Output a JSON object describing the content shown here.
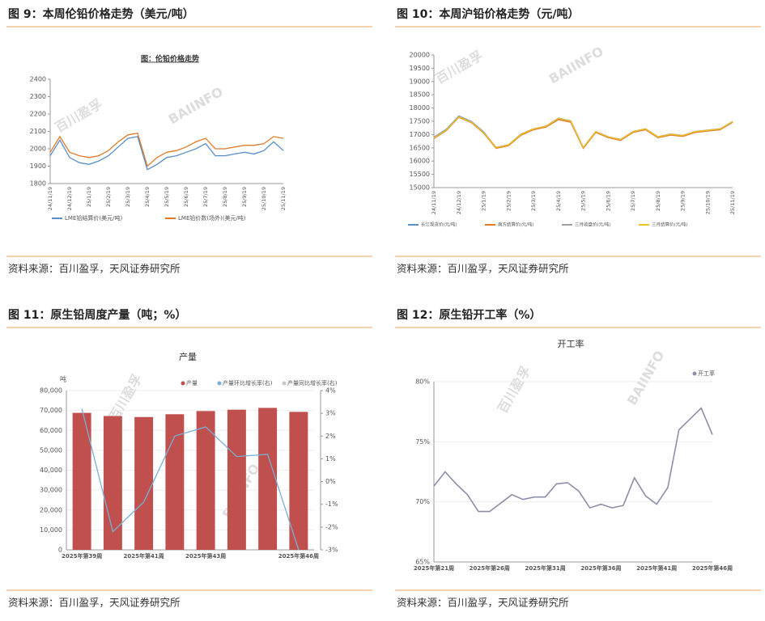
{
  "watermark": [
    "百川盈孚",
    "BAIINFO"
  ],
  "panels": [
    {
      "heading": "图 9：本周伦铅价格走势（美元/吨）",
      "source": "资料来源：百川盈孚，天风证券研究所"
    },
    {
      "heading": "图 10：本周沪铅价格走势（元/吨）",
      "source": "资料来源：百川盈孚，天风证券研究所"
    },
    {
      "heading": "图 11：原生铅周度产量（吨；%）",
      "source": "资料来源：百川盈孚，天风证券研究所"
    },
    {
      "heading": "图 12：原生铅开工率（%）",
      "source": "资料来源：百川盈孚，天风证券研究所"
    }
  ],
  "chart_data": [
    {
      "type": "line",
      "title": "图：伦铅价格走势",
      "categories": [
        "24/11/19",
        null,
        "24/12/19",
        null,
        "25/1/19",
        null,
        "25/2/19",
        null,
        "25/3/19",
        null,
        "25/4/19",
        null,
        "25/5/19",
        null,
        "25/6/19",
        null,
        "25/7/19",
        null,
        "25/8/19",
        null,
        "25/9/19",
        null,
        "25/10/19",
        null,
        "25/11/19"
      ],
      "series": [
        {
          "name": "LME铅结算价(美元/吨)",
          "color": "#5b8fc7",
          "values": [
            1960,
            2050,
            1950,
            1920,
            1910,
            1930,
            1960,
            2010,
            2060,
            2070,
            1880,
            1910,
            1950,
            1960,
            1980,
            2000,
            2030,
            1960,
            1960,
            1970,
            1980,
            1970,
            1990,
            2040,
            1990
          ]
        },
        {
          "name": "LME铅价数(场外)(美元/吨)",
          "color": "#e07b2a",
          "values": [
            1980,
            2070,
            1980,
            1960,
            1950,
            1960,
            1990,
            2040,
            2080,
            2090,
            1900,
            1950,
            1980,
            1990,
            2010,
            2040,
            2060,
            2000,
            2000,
            2010,
            2020,
            2020,
            2030,
            2070,
            2060
          ]
        }
      ],
      "ylim": [
        1800,
        2400
      ],
      "yticks": [
        1800,
        1900,
        2000,
        2100,
        2200,
        2300,
        2400
      ]
    },
    {
      "type": "line",
      "categories": [
        "24/11/19",
        null,
        "24/12/19",
        null,
        "25/1/19",
        null,
        "25/2/19",
        null,
        "25/3/19",
        null,
        "25/4/19",
        null,
        "25/5/19",
        null,
        "25/6/19",
        null,
        "25/7/19",
        null,
        "25/8/19",
        null,
        "25/9/19",
        null,
        "25/10/19",
        null,
        "25/11/19"
      ],
      "series": [
        {
          "name": "长江现货价(元/吨)",
          "color": "#5b8fc7",
          "values": [
            16900,
            17200,
            17700,
            17500,
            17100,
            16500,
            16600,
            17000,
            17200,
            17300,
            17600,
            17500,
            16500,
            17100,
            16900,
            16800,
            17100,
            17200,
            16900,
            17000,
            16950,
            17100,
            17150,
            17200,
            17500
          ]
        },
        {
          "name": "南方结算价(元/吨)",
          "color": "#e07b2a",
          "values": [
            16850,
            17150,
            17650,
            17450,
            17050,
            16480,
            16580,
            16980,
            17180,
            17280,
            17560,
            17460,
            16480,
            17080,
            16880,
            16780,
            17080,
            17180,
            16880,
            16980,
            16930,
            17080,
            17130,
            17180,
            17460
          ]
        },
        {
          "name": "三月收盘价(元/吨)",
          "color": "#a0a0a0",
          "values": [
            16880,
            17180,
            17680,
            17480,
            17080,
            16520,
            16620,
            17020,
            17220,
            17320,
            17620,
            17520,
            16520,
            17120,
            16920,
            16820,
            17120,
            17220,
            16920,
            17020,
            16970,
            17120,
            17170,
            17220,
            17480
          ]
        },
        {
          "name": "三月结算价(元/吨)",
          "color": "#f0c020",
          "values": [
            16870,
            17170,
            17670,
            17470,
            17070,
            16510,
            16610,
            17010,
            17210,
            17310,
            17610,
            17510,
            16510,
            17110,
            16910,
            16810,
            17110,
            17210,
            16910,
            17010,
            16960,
            17110,
            17160,
            17210,
            17490
          ]
        }
      ],
      "ylim": [
        15000,
        20000
      ],
      "yticks": [
        15000,
        15500,
        16000,
        16500,
        17000,
        17500,
        18000,
        18500,
        19000,
        19500,
        20000
      ]
    },
    {
      "type": "bar_line",
      "title": "产量",
      "y_label": "吨",
      "categories": [
        "2025年第39周",
        null,
        "2025年第41周",
        null,
        "2025年第43周",
        null,
        null,
        "2025年第46周"
      ],
      "series": [
        {
          "name": "产量",
          "color": "#c0504d",
          "values": [
            68800,
            67200,
            66700,
            68100,
            69700,
            70400,
            71300,
            69300
          ]
        },
        {
          "name": "产量环比增长率(右)",
          "color": "#7aaed6",
          "axis": "y2",
          "values": [
            3.2,
            -2.2,
            -0.9,
            2.0,
            2.4,
            1.1,
            1.2,
            -3.0
          ]
        },
        {
          "name": "产量同比增长率(右)",
          "color": "#c8c8c8",
          "axis": "y2",
          "values": [
            null,
            null,
            null,
            null,
            null,
            null,
            null,
            null
          ]
        }
      ],
      "ylim": [
        0,
        80000
      ],
      "yticks": [
        0,
        {
          "value": 10000,
          "label": "10,000"
        },
        {
          "value": 20000,
          "label": "20,000"
        },
        {
          "value": 30000,
          "label": "30,000"
        },
        {
          "value": 40000,
          "label": "40,000"
        },
        {
          "value": 50000,
          "label": "50,000"
        },
        {
          "value": 60000,
          "label": "60,000"
        },
        {
          "value": 70000,
          "label": "70,000"
        },
        {
          "value": 80000,
          "label": "80,000"
        }
      ],
      "y2lim": [
        -3,
        4
      ],
      "y2ticks": [
        {
          "value": -3,
          "label": "-3%"
        },
        {
          "value": -2,
          "label": "-2%"
        },
        {
          "value": -1,
          "label": "-1%"
        },
        {
          "value": 0,
          "label": "0%"
        },
        {
          "value": 1,
          "label": "1%"
        },
        {
          "value": 2,
          "label": "2%"
        },
        {
          "value": 3,
          "label": "3%"
        },
        {
          "value": 4,
          "label": "4%"
        }
      ]
    },
    {
      "type": "line",
      "title": "开工率",
      "categories": [
        "2025年第21周",
        null,
        null,
        null,
        null,
        "2025年第26周",
        null,
        null,
        null,
        null,
        "2025年第31周",
        null,
        null,
        null,
        null,
        "2025年第36周",
        null,
        null,
        null,
        null,
        "2025年第41周",
        null,
        null,
        null,
        null,
        "2025年第46周"
      ],
      "series": [
        {
          "name": "开工率",
          "color": "#8e8ea8",
          "values": [
            71.3,
            72.5,
            71.5,
            70.6,
            69.2,
            69.2,
            69.9,
            70.6,
            70.2,
            70.4,
            70.4,
            71.5,
            71.6,
            70.9,
            69.5,
            69.8,
            69.5,
            69.7,
            72.0,
            70.5,
            69.8,
            71.2,
            76.0,
            76.9,
            77.8,
            75.6
          ]
        }
      ],
      "ylim": [
        65,
        80
      ],
      "yticks": [
        {
          "value": 65,
          "label": "65%"
        },
        {
          "value": 70,
          "label": "70%"
        },
        {
          "value": 75,
          "label": "75%"
        },
        {
          "value": 80,
          "label": "80%"
        }
      ]
    }
  ]
}
